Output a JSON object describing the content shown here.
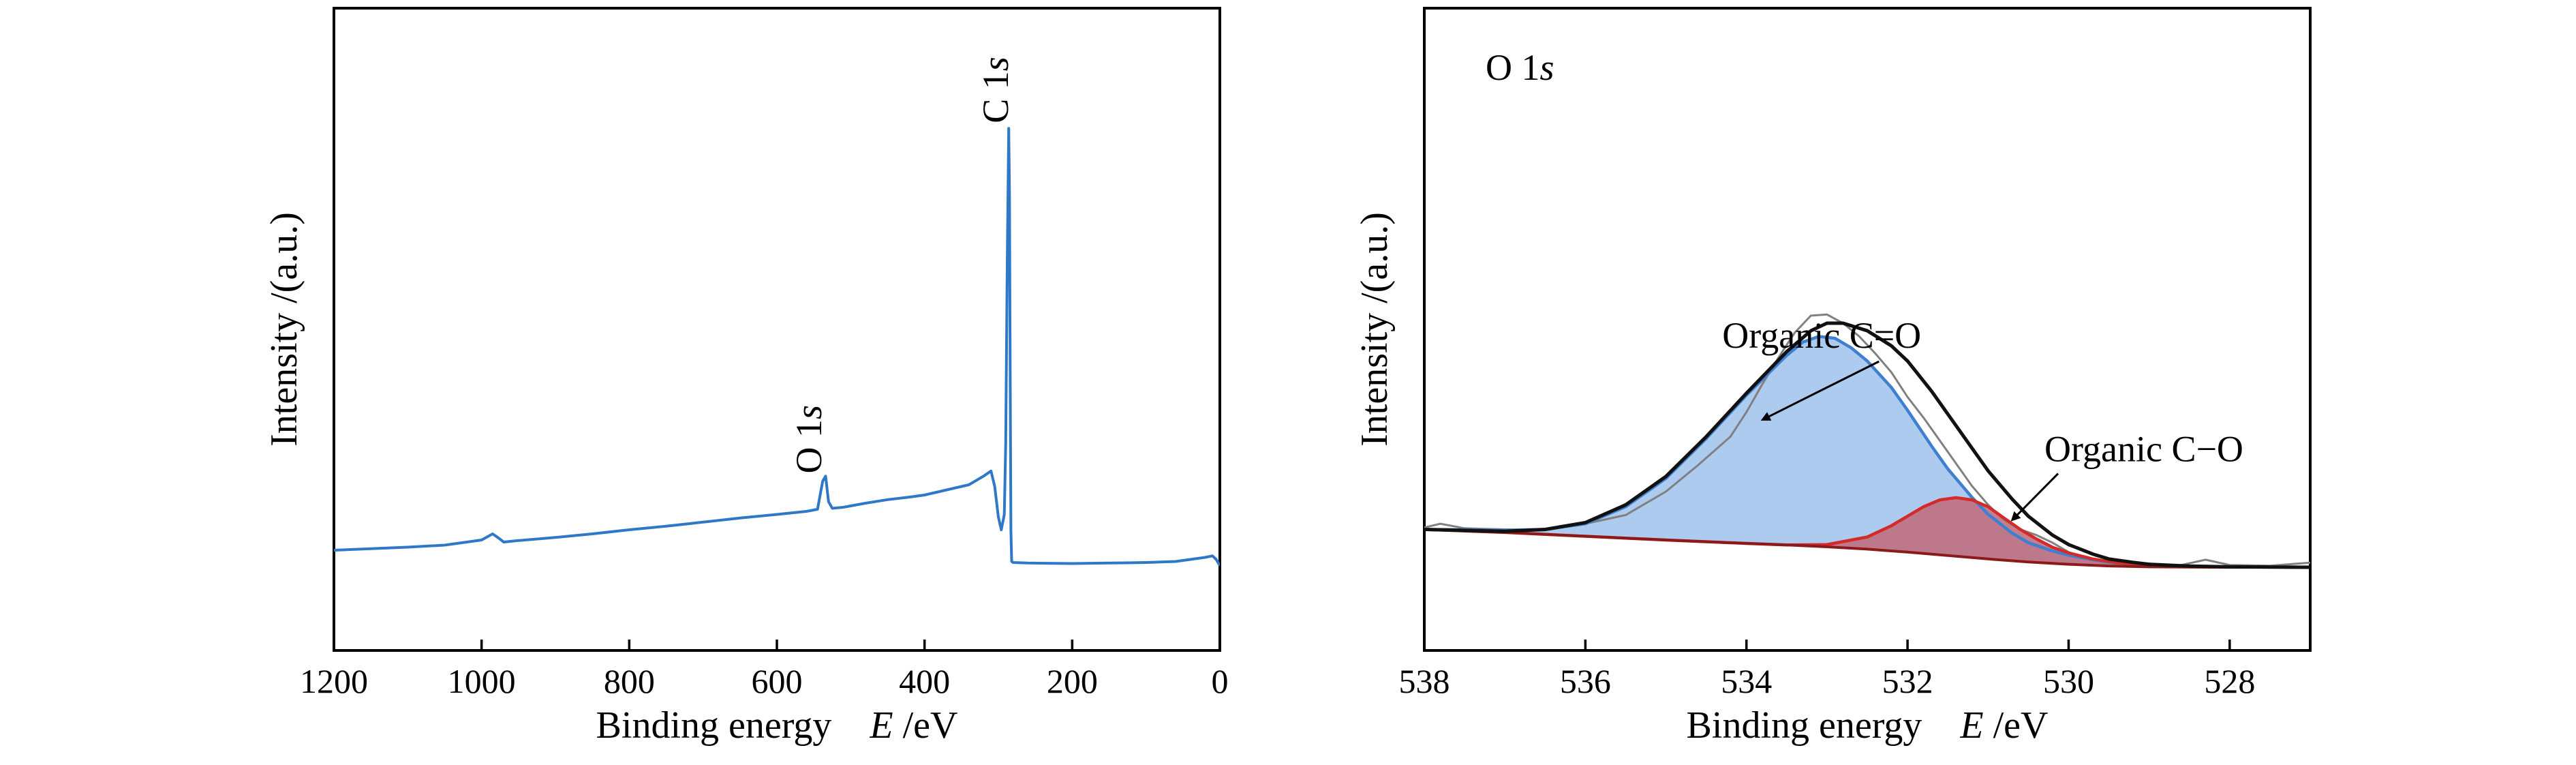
{
  "chart_data": [
    {
      "type": "line",
      "title": "",
      "xlabel_prefix": "Binding energy",
      "xlabel_var": "E",
      "xlabel_unit": "/eV",
      "ylabel": "Intensity /(a.u.)",
      "xlim": [
        1200,
        0
      ],
      "ylim": [
        0,
        100
      ],
      "x_reversed": true,
      "y_ticks_shown": false,
      "xticks": [
        1200,
        1000,
        800,
        600,
        400,
        200,
        0
      ],
      "xtick_labels": [
        "1200",
        "1000",
        "800",
        "600",
        "400",
        "200",
        "0"
      ],
      "series": [
        {
          "color": "#2f78c8",
          "x": [
            1200,
            1150,
            1100,
            1050,
            1000,
            985,
            978,
            970,
            950,
            900,
            850,
            800,
            750,
            700,
            650,
            600,
            560,
            545,
            538,
            534,
            530,
            525,
            510,
            480,
            450,
            420,
            400,
            370,
            340,
            320,
            310,
            305,
            300,
            296,
            292,
            290,
            288,
            286,
            285,
            284,
            283,
            282,
            280,
            260,
            200,
            150,
            100,
            60,
            20,
            10,
            5,
            0
          ],
          "y": [
            14.0,
            14.3,
            14.6,
            15.0,
            16.0,
            17.2,
            16.5,
            15.6,
            15.9,
            16.5,
            17.2,
            18.0,
            18.7,
            19.5,
            20.3,
            21.0,
            21.6,
            22.0,
            27.5,
            28.5,
            23.5,
            22.2,
            22.4,
            23.2,
            23.9,
            24.4,
            24.8,
            25.8,
            26.8,
            28.5,
            29.5,
            26.5,
            20.5,
            18.0,
            21.0,
            35.0,
            70.0,
            96.5,
            84.0,
            50.0,
            18.0,
            11.8,
            11.6,
            11.5,
            11.4,
            11.5,
            11.6,
            11.8,
            12.6,
            12.9,
            12.2,
            11.0
          ]
        }
      ],
      "annotations": [
        {
          "text": "O 1",
          "italic": "s",
          "x": 540,
          "y": 29
        },
        {
          "text": "C 1",
          "italic": "s",
          "x": 287,
          "y": 97.5
        }
      ]
    },
    {
      "type": "area",
      "title": "O 1s",
      "title_text": "O 1",
      "title_italic": "s",
      "xlabel_prefix": "Binding energy",
      "xlabel_var": "E",
      "xlabel_unit": "/eV",
      "ylabel": "Intensity /(a.u.)",
      "xlim": [
        538,
        527
      ],
      "ylim": [
        0,
        100
      ],
      "x_reversed": true,
      "y_ticks_shown": false,
      "xticks": [
        538,
        536,
        534,
        532,
        530,
        528
      ],
      "xtick_labels": [
        "538",
        "536",
        "534",
        "532",
        "530",
        "528"
      ],
      "series": [
        {
          "name": "raw",
          "color": "#808080",
          "x": [
            538,
            537.8,
            537.5,
            537,
            536.5,
            536,
            535.5,
            535,
            534.6,
            534.2,
            534,
            533.8,
            533.6,
            533.4,
            533.2,
            533,
            532.8,
            532.6,
            532.4,
            532.2,
            532,
            531.8,
            531.6,
            531.4,
            531.2,
            531,
            530.8,
            530.6,
            530.4,
            530.2,
            530,
            529.8,
            529.6,
            529.4,
            529.2,
            529,
            528.8,
            528.6,
            528.3,
            528,
            527.5,
            527
          ],
          "y": [
            10.5,
            11.5,
            10.3,
            10.0,
            9.8,
            11.5,
            13.8,
            20.0,
            27.0,
            34.5,
            41.0,
            48.5,
            55.5,
            62.0,
            66.5,
            66.8,
            64.5,
            61.0,
            56.5,
            51.5,
            45.0,
            39.5,
            33.5,
            27.5,
            21.5,
            16.5,
            12.5,
            10.0,
            8.5,
            6.5,
            4.0,
            2.5,
            1.5,
            0.8,
            0.5,
            1.0,
            0.3,
            0.6,
            2.0,
            0.6,
            0.4,
            1.2
          ]
        },
        {
          "name": "envelope",
          "color": "#111111",
          "x": [
            538,
            537,
            536.5,
            536,
            535.5,
            535,
            534.5,
            534,
            533.5,
            533.2,
            533,
            532.8,
            532.5,
            532.2,
            532,
            531.7,
            531.4,
            531.2,
            531,
            530.7,
            530.5,
            530.2,
            530,
            529.7,
            529.5,
            529.2,
            529,
            528.5,
            528,
            527
          ],
          "y": [
            10.0,
            9.5,
            10.0,
            11.8,
            16.5,
            24.0,
            34.5,
            46.0,
            57.0,
            62.5,
            64.5,
            64.5,
            62.5,
            58.5,
            54.5,
            46.5,
            37.5,
            31.5,
            25.5,
            18.0,
            13.5,
            8.5,
            6.0,
            3.5,
            2.2,
            1.3,
            0.8,
            0.3,
            0.1,
            0
          ]
        },
        {
          "name": "Organic C=O",
          "color": "#3f7fcf",
          "fill": "#a9c8ee",
          "x": [
            538,
            537,
            536.5,
            536,
            535.5,
            535,
            534.5,
            534,
            533.5,
            533.3,
            533.1,
            532.9,
            532.7,
            532.5,
            532.2,
            532,
            531.7,
            531.5,
            531.2,
            531,
            530.7,
            530.5,
            530.2,
            530,
            529.7,
            529.5,
            529,
            528.5,
            528,
            527
          ],
          "y": [
            10.0,
            9.8,
            10.0,
            11.5,
            16.0,
            23.5,
            34.0,
            45.5,
            56.0,
            59.5,
            61.0,
            60.5,
            58.0,
            54.5,
            47.5,
            41.5,
            32.0,
            26.0,
            18.5,
            14.0,
            9.0,
            6.5,
            4.3,
            3.2,
            2.0,
            1.4,
            0.6,
            0.2,
            0.1,
            0
          ]
        },
        {
          "name": "Organic C−O",
          "color": "#d42a2a",
          "fill": "#c06f80",
          "x": [
            538,
            537,
            536,
            535,
            534,
            533.5,
            533,
            532.5,
            532.2,
            532,
            531.8,
            531.6,
            531.4,
            531.2,
            531,
            530.8,
            530.6,
            530.4,
            530.2,
            530,
            529.7,
            529.4,
            529,
            528.5,
            528,
            527
          ],
          "y": [
            10.0,
            9.2,
            8.2,
            7.2,
            6.3,
            5.9,
            6.0,
            8.0,
            11.0,
            13.5,
            16.0,
            17.8,
            18.4,
            17.8,
            16.0,
            13.0,
            10.0,
            7.5,
            5.3,
            3.8,
            2.2,
            1.2,
            0.5,
            0.15,
            0.05,
            0
          ]
        },
        {
          "name": "background",
          "color": "#8b1a1a",
          "x": [
            538,
            537,
            536,
            535,
            534,
            533.5,
            533,
            532.5,
            532,
            531.5,
            531,
            530.5,
            530,
            529.5,
            529,
            528.5,
            528,
            527
          ],
          "y": [
            10.0,
            9.2,
            8.2,
            7.2,
            6.3,
            5.9,
            5.4,
            4.8,
            4.0,
            3.1,
            2.2,
            1.4,
            0.8,
            0.35,
            0.1,
            0.03,
            0,
            0
          ]
        }
      ],
      "annotations": [
        {
          "text": "Organic C=O",
          "x": 534.3,
          "y": 58,
          "arrow_to": [
            533.8,
            39
          ]
        },
        {
          "text": "Organic C−O",
          "x": 530.3,
          "y": 28,
          "arrow_to": [
            530.7,
            12.5
          ]
        }
      ]
    }
  ]
}
